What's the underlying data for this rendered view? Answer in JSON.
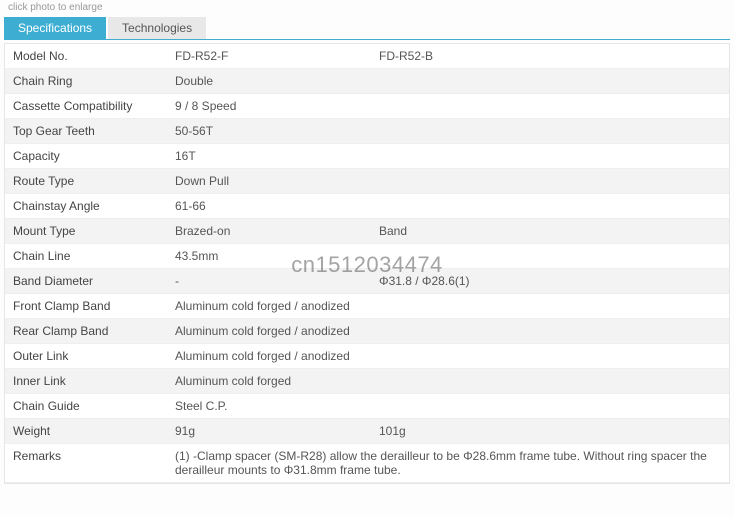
{
  "header": {
    "small_text": "click photo to enlarge"
  },
  "tabs": {
    "spec": "Specifications",
    "tech": "Technologies"
  },
  "rows": [
    {
      "label": "Model No.",
      "v1": "FD-R52-F",
      "v2": "FD-R52-B",
      "span": false
    },
    {
      "label": "Chain Ring",
      "v1": "Double",
      "v2": "",
      "span": true
    },
    {
      "label": "Cassette Compatibility",
      "v1": "9 / 8 Speed",
      "v2": "",
      "span": true
    },
    {
      "label": "Top Gear Teeth",
      "v1": "50-56T",
      "v2": "",
      "span": true
    },
    {
      "label": "Capacity",
      "v1": "16T",
      "v2": "",
      "span": true
    },
    {
      "label": "Route Type",
      "v1": "Down Pull",
      "v2": "",
      "span": true
    },
    {
      "label": "Chainstay Angle",
      "v1": "61-66",
      "v2": "",
      "span": true
    },
    {
      "label": "Mount Type",
      "v1": "Brazed-on",
      "v2": "Band",
      "span": false
    },
    {
      "label": "Chain Line",
      "v1": "43.5mm",
      "v2": "",
      "span": true
    },
    {
      "label": "Band Diameter",
      "v1": "-",
      "v2": "Φ31.8 / Φ28.6(1)",
      "span": false
    },
    {
      "label": "Front Clamp Band",
      "v1": "Aluminum cold forged / anodized",
      "v2": "",
      "span": true
    },
    {
      "label": "Rear Clamp Band",
      "v1": "Aluminum cold forged / anodized",
      "v2": "",
      "span": true
    },
    {
      "label": "Outer Link",
      "v1": "Aluminum cold forged / anodized",
      "v2": "",
      "span": true
    },
    {
      "label": "Inner Link",
      "v1": "Aluminum cold forged",
      "v2": "",
      "span": true
    },
    {
      "label": "Chain Guide",
      "v1": "Steel C.P.",
      "v2": "",
      "span": true
    },
    {
      "label": "Weight",
      "v1": "91g",
      "v2": "101g",
      "span": false
    },
    {
      "label": "Remarks",
      "v1": "(1) -Clamp spacer (SM-R28) allow the derailleur to be Φ28.6mm frame tube. Without ring spacer the derailleur mounts to Φ31.8mm frame tube.",
      "v2": "",
      "span": true
    }
  ],
  "watermark": "cn1512034474",
  "colors": {
    "accent": "#3daed2",
    "row_alt": "#f3f3f3",
    "border": "#e6e6e6"
  }
}
